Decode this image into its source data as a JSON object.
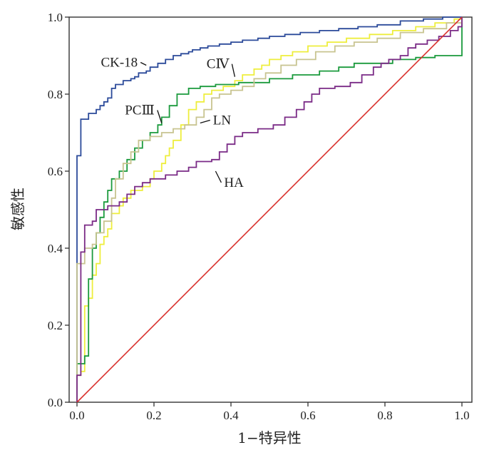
{
  "chart_data": {
    "type": "line",
    "title": "",
    "xlabel": "1−特异性",
    "ylabel": "敏感性",
    "xlim": [
      0,
      1
    ],
    "ylim": [
      0,
      1
    ],
    "x_ticks": [
      "0.0",
      "0.2",
      "0.4",
      "0.6",
      "0.8",
      "1.0"
    ],
    "y_ticks": [
      "0.0",
      "0.2",
      "0.4",
      "0.6",
      "0.8",
      "1.0"
    ],
    "grid": false,
    "legend": "none",
    "series": [
      {
        "name": "CK-18",
        "color": "#2b4a9a",
        "points": [
          [
            0,
            0
          ],
          [
            0,
            0.36
          ],
          [
            0,
            0.64
          ],
          [
            0.01,
            0.66
          ],
          [
            0.01,
            0.735
          ],
          [
            0.03,
            0.74
          ],
          [
            0.03,
            0.75
          ],
          [
            0.05,
            0.76
          ],
          [
            0.06,
            0.77
          ],
          [
            0.07,
            0.78
          ],
          [
            0.08,
            0.79
          ],
          [
            0.09,
            0.8
          ],
          [
            0.09,
            0.815
          ],
          [
            0.1,
            0.825
          ],
          [
            0.12,
            0.835
          ],
          [
            0.14,
            0.84
          ],
          [
            0.15,
            0.845
          ],
          [
            0.16,
            0.855
          ],
          [
            0.18,
            0.86
          ],
          [
            0.19,
            0.87
          ],
          [
            0.21,
            0.88
          ],
          [
            0.23,
            0.89
          ],
          [
            0.25,
            0.9
          ],
          [
            0.27,
            0.905
          ],
          [
            0.29,
            0.91
          ],
          [
            0.3,
            0.915
          ],
          [
            0.32,
            0.92
          ],
          [
            0.34,
            0.925
          ],
          [
            0.37,
            0.93
          ],
          [
            0.4,
            0.935
          ],
          [
            0.43,
            0.94
          ],
          [
            0.47,
            0.945
          ],
          [
            0.5,
            0.95
          ],
          [
            0.54,
            0.955
          ],
          [
            0.58,
            0.96
          ],
          [
            0.63,
            0.965
          ],
          [
            0.68,
            0.97
          ],
          [
            0.73,
            0.975
          ],
          [
            0.78,
            0.98
          ],
          [
            0.84,
            0.99
          ],
          [
            0.9,
            0.995
          ],
          [
            0.95,
            1.0
          ],
          [
            1,
            1.0
          ]
        ]
      },
      {
        "name": "CⅣ",
        "color": "#eeee3c",
        "points": [
          [
            0,
            0
          ],
          [
            0,
            0.07
          ],
          [
            0.01,
            0.08
          ],
          [
            0.02,
            0.25
          ],
          [
            0.03,
            0.27
          ],
          [
            0.04,
            0.33
          ],
          [
            0.05,
            0.36
          ],
          [
            0.06,
            0.41
          ],
          [
            0.07,
            0.43
          ],
          [
            0.08,
            0.45
          ],
          [
            0.09,
            0.49
          ],
          [
            0.11,
            0.51
          ],
          [
            0.12,
            0.53
          ],
          [
            0.14,
            0.55
          ],
          [
            0.17,
            0.56
          ],
          [
            0.19,
            0.58
          ],
          [
            0.2,
            0.6
          ],
          [
            0.22,
            0.62
          ],
          [
            0.23,
            0.64
          ],
          [
            0.24,
            0.66
          ],
          [
            0.25,
            0.68
          ],
          [
            0.27,
            0.72
          ],
          [
            0.29,
            0.76
          ],
          [
            0.31,
            0.78
          ],
          [
            0.33,
            0.8
          ],
          [
            0.35,
            0.81
          ],
          [
            0.38,
            0.82
          ],
          [
            0.41,
            0.835
          ],
          [
            0.43,
            0.85
          ],
          [
            0.46,
            0.865
          ],
          [
            0.48,
            0.875
          ],
          [
            0.5,
            0.89
          ],
          [
            0.53,
            0.9
          ],
          [
            0.56,
            0.91
          ],
          [
            0.6,
            0.925
          ],
          [
            0.65,
            0.935
          ],
          [
            0.7,
            0.945
          ],
          [
            0.76,
            0.955
          ],
          [
            0.82,
            0.965
          ],
          [
            0.88,
            0.975
          ],
          [
            0.93,
            0.985
          ],
          [
            0.98,
            0.995
          ],
          [
            1,
            1.0
          ]
        ]
      },
      {
        "name": "PCⅢ",
        "color": "#1a9a3c",
        "points": [
          [
            0,
            0
          ],
          [
            0,
            0.1
          ],
          [
            0.02,
            0.12
          ],
          [
            0.03,
            0.15
          ],
          [
            0.03,
            0.32
          ],
          [
            0.04,
            0.4
          ],
          [
            0.05,
            0.44
          ],
          [
            0.06,
            0.48
          ],
          [
            0.07,
            0.52
          ],
          [
            0.08,
            0.55
          ],
          [
            0.09,
            0.58
          ],
          [
            0.11,
            0.6
          ],
          [
            0.13,
            0.63
          ],
          [
            0.15,
            0.66
          ],
          [
            0.17,
            0.68
          ],
          [
            0.19,
            0.7
          ],
          [
            0.21,
            0.72
          ],
          [
            0.22,
            0.74
          ],
          [
            0.24,
            0.77
          ],
          [
            0.26,
            0.8
          ],
          [
            0.29,
            0.815
          ],
          [
            0.32,
            0.82
          ],
          [
            0.36,
            0.825
          ],
          [
            0.42,
            0.83
          ],
          [
            0.5,
            0.84
          ],
          [
            0.56,
            0.85
          ],
          [
            0.63,
            0.86
          ],
          [
            0.68,
            0.87
          ],
          [
            0.72,
            0.88
          ],
          [
            0.82,
            0.89
          ],
          [
            0.88,
            0.895
          ],
          [
            0.93,
            0.9
          ],
          [
            0.99,
            0.9
          ],
          [
            1,
            0.93
          ],
          [
            1,
            1.0
          ]
        ]
      },
      {
        "name": "LN",
        "color": "#c8c490",
        "points": [
          [
            0,
            0
          ],
          [
            0,
            0.36
          ],
          [
            0.01,
            0.36
          ],
          [
            0.02,
            0.4
          ],
          [
            0.04,
            0.41
          ],
          [
            0.05,
            0.44
          ],
          [
            0.07,
            0.47
          ],
          [
            0.09,
            0.53
          ],
          [
            0.1,
            0.58
          ],
          [
            0.12,
            0.62
          ],
          [
            0.14,
            0.65
          ],
          [
            0.16,
            0.68
          ],
          [
            0.19,
            0.69
          ],
          [
            0.22,
            0.7
          ],
          [
            0.25,
            0.71
          ],
          [
            0.28,
            0.72
          ],
          [
            0.31,
            0.74
          ],
          [
            0.33,
            0.76
          ],
          [
            0.35,
            0.79
          ],
          [
            0.37,
            0.8
          ],
          [
            0.4,
            0.81
          ],
          [
            0.43,
            0.82
          ],
          [
            0.46,
            0.84
          ],
          [
            0.49,
            0.855
          ],
          [
            0.53,
            0.875
          ],
          [
            0.57,
            0.89
          ],
          [
            0.62,
            0.91
          ],
          [
            0.67,
            0.925
          ],
          [
            0.72,
            0.935
          ],
          [
            0.78,
            0.945
          ],
          [
            0.84,
            0.96
          ],
          [
            0.9,
            0.97
          ],
          [
            0.96,
            0.985
          ],
          [
            1,
            1.0
          ]
        ]
      },
      {
        "name": "HA",
        "color": "#7a2a86",
        "points": [
          [
            0,
            0
          ],
          [
            0,
            0.07
          ],
          [
            0.01,
            0.12
          ],
          [
            0.01,
            0.39
          ],
          [
            0.02,
            0.46
          ],
          [
            0.04,
            0.47
          ],
          [
            0.05,
            0.5
          ],
          [
            0.08,
            0.51
          ],
          [
            0.11,
            0.52
          ],
          [
            0.13,
            0.54
          ],
          [
            0.15,
            0.56
          ],
          [
            0.17,
            0.57
          ],
          [
            0.19,
            0.58
          ],
          [
            0.23,
            0.59
          ],
          [
            0.26,
            0.6
          ],
          [
            0.29,
            0.61
          ],
          [
            0.31,
            0.625
          ],
          [
            0.35,
            0.63
          ],
          [
            0.37,
            0.65
          ],
          [
            0.39,
            0.67
          ],
          [
            0.41,
            0.69
          ],
          [
            0.43,
            0.7
          ],
          [
            0.47,
            0.71
          ],
          [
            0.51,
            0.72
          ],
          [
            0.54,
            0.74
          ],
          [
            0.57,
            0.76
          ],
          [
            0.59,
            0.78
          ],
          [
            0.61,
            0.8
          ],
          [
            0.63,
            0.815
          ],
          [
            0.67,
            0.82
          ],
          [
            0.71,
            0.83
          ],
          [
            0.74,
            0.85
          ],
          [
            0.77,
            0.87
          ],
          [
            0.79,
            0.88
          ],
          [
            0.81,
            0.89
          ],
          [
            0.84,
            0.9
          ],
          [
            0.86,
            0.92
          ],
          [
            0.88,
            0.93
          ],
          [
            0.91,
            0.94
          ],
          [
            0.94,
            0.95
          ],
          [
            0.97,
            0.965
          ],
          [
            0.99,
            0.975
          ],
          [
            1,
            1.0
          ]
        ]
      },
      {
        "name": "",
        "color": "#d9302c",
        "points": [
          [
            0,
            0
          ],
          [
            1,
            1
          ]
        ]
      }
    ],
    "annotations": [
      {
        "text": "CK-18",
        "series": "CK-18",
        "x": 0.18,
        "y": 0.875
      },
      {
        "text": "CⅣ",
        "series": "CⅣ",
        "x": 0.41,
        "y": 0.845
      },
      {
        "text": "PCⅢ",
        "series": "PCⅢ",
        "x": 0.22,
        "y": 0.725
      },
      {
        "text": "LN",
        "series": "LN",
        "x": 0.32,
        "y": 0.725
      },
      {
        "text": "HA",
        "series": "HA",
        "x": 0.36,
        "y": 0.6
      }
    ]
  }
}
